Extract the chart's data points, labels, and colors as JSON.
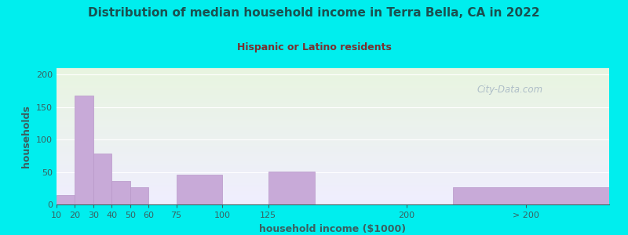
{
  "title": "Distribution of median household income in Terra Bella, CA in 2022",
  "subtitle": "Hispanic or Latino residents",
  "xlabel": "household income ($1000)",
  "ylabel": "households",
  "background_outer": "#00EEEE",
  "background_inner_top": "#e8f5e0",
  "background_inner_bottom": "#f0eeff",
  "bar_color": "#c8aad8",
  "bar_edge_color": "#b898c8",
  "title_color": "#1a5050",
  "subtitle_color": "#7a3030",
  "axis_label_color": "#3a6060",
  "tick_label_color": "#3a6060",
  "watermark": "City-Data.com",
  "values": [
    15,
    168,
    78,
    36,
    26,
    0,
    46,
    0,
    51,
    0,
    26
  ],
  "bar_lefts": [
    10,
    20,
    30,
    40,
    50,
    60,
    75,
    100,
    125,
    200,
    225
  ],
  "bar_rights": [
    20,
    30,
    40,
    50,
    60,
    75,
    100,
    125,
    150,
    225,
    310
  ],
  "xlim_left": 10,
  "xlim_right": 310,
  "ylim": [
    0,
    210
  ],
  "yticks": [
    0,
    50,
    100,
    150,
    200
  ],
  "xtick_labels": [
    "10",
    "20",
    "30",
    "40",
    "50",
    "60",
    "75",
    "100",
    "125",
    "200",
    "> 200"
  ],
  "xtick_positions": [
    10,
    20,
    30,
    40,
    50,
    60,
    75,
    100,
    125,
    200,
    265
  ]
}
